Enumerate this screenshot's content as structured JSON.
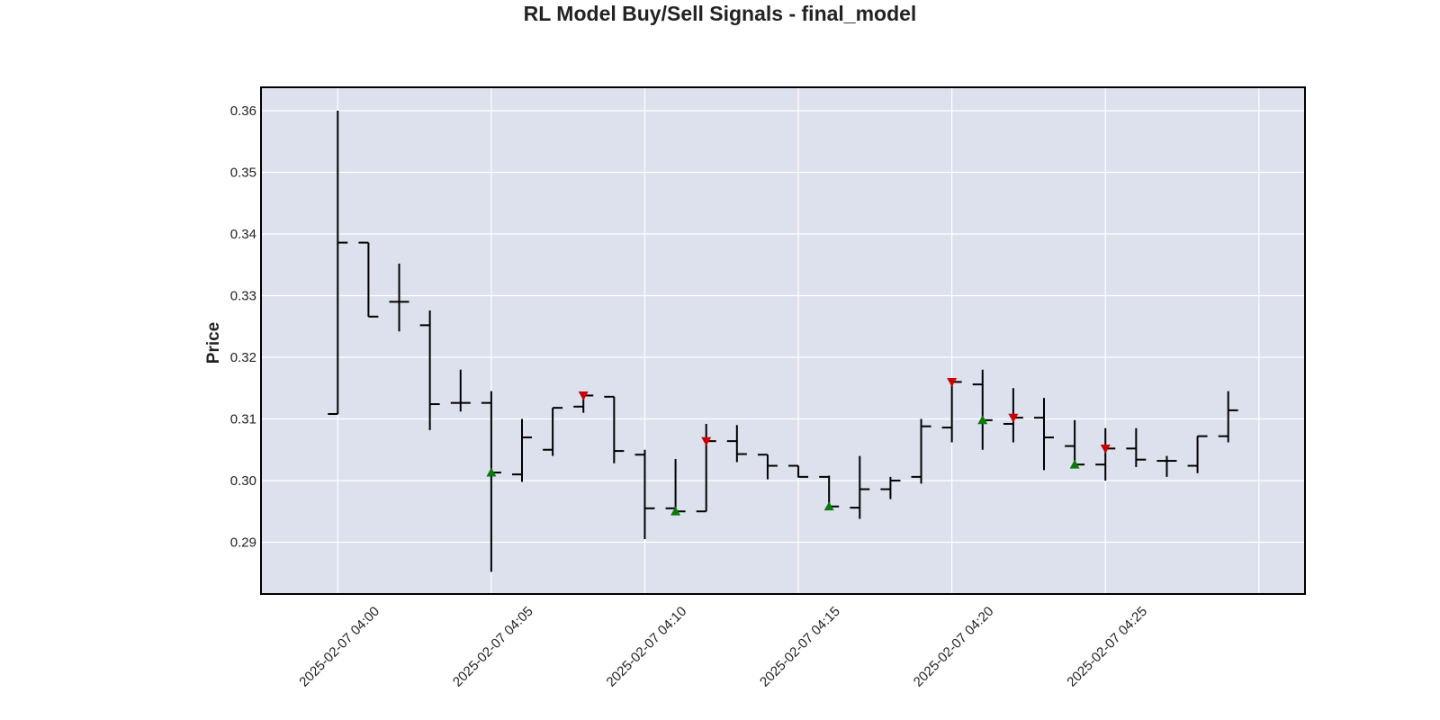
{
  "chart_data": {
    "type": "ohlc",
    "title": "RL Model Buy/Sell Signals - final_model",
    "xlabel": "",
    "ylabel": "Price",
    "x_unit": "minute",
    "x_start": "2025-02-07 04:00",
    "x_ticks": [
      "2025-02-07 04:00",
      "2025-02-07 04:05",
      "2025-02-07 04:10",
      "2025-02-07 04:15",
      "2025-02-07 04:20",
      "2025-02-07 04:25"
    ],
    "xlim": [
      "2025-02-07 03:57:30",
      "2025-02-07 04:31:30"
    ],
    "y_ticks": [
      "0.29",
      "0.30",
      "0.31",
      "0.32",
      "0.33",
      "0.34",
      "0.35",
      "0.36"
    ],
    "ylim": [
      0.2816,
      0.3638
    ],
    "grid": true,
    "colors": {
      "background": "#dde1ee",
      "grid": "#ffffff",
      "bars": "#000000",
      "buy": "#0a7a0a",
      "sell": "#cc0000",
      "frame": "#000000"
    },
    "candles": [
      {
        "t": "2025-02-07 04:00",
        "open": 0.3108,
        "high": 0.36,
        "low": 0.3108,
        "close": 0.3386
      },
      {
        "t": "2025-02-07 04:01",
        "open": 0.3386,
        "high": 0.3386,
        "low": 0.3266,
        "close": 0.3266
      },
      {
        "t": "2025-02-07 04:02",
        "open": 0.329,
        "high": 0.3352,
        "low": 0.3242,
        "close": 0.329
      },
      {
        "t": "2025-02-07 04:03",
        "open": 0.3252,
        "high": 0.3276,
        "low": 0.3082,
        "close": 0.3124
      },
      {
        "t": "2025-02-07 04:04",
        "open": 0.3126,
        "high": 0.318,
        "low": 0.3112,
        "close": 0.3126
      },
      {
        "t": "2025-02-07 04:05",
        "open": 0.3126,
        "high": 0.3145,
        "low": 0.2852,
        "close": 0.3013
      },
      {
        "t": "2025-02-07 04:06",
        "open": 0.301,
        "high": 0.31,
        "low": 0.2998,
        "close": 0.307
      },
      {
        "t": "2025-02-07 04:07",
        "open": 0.305,
        "high": 0.3118,
        "low": 0.304,
        "close": 0.3118
      },
      {
        "t": "2025-02-07 04:08",
        "open": 0.312,
        "high": 0.314,
        "low": 0.311,
        "close": 0.3138
      },
      {
        "t": "2025-02-07 04:09",
        "open": 0.3136,
        "high": 0.3136,
        "low": 0.3028,
        "close": 0.3048
      },
      {
        "t": "2025-02-07 04:10",
        "open": 0.3042,
        "high": 0.305,
        "low": 0.2905,
        "close": 0.2955
      },
      {
        "t": "2025-02-07 04:11",
        "open": 0.2955,
        "high": 0.3035,
        "low": 0.2945,
        "close": 0.295
      },
      {
        "t": "2025-02-07 04:12",
        "open": 0.295,
        "high": 0.3092,
        "low": 0.295,
        "close": 0.3064
      },
      {
        "t": "2025-02-07 04:13",
        "open": 0.3064,
        "high": 0.309,
        "low": 0.303,
        "close": 0.3043
      },
      {
        "t": "2025-02-07 04:14",
        "open": 0.3042,
        "high": 0.3042,
        "low": 0.3002,
        "close": 0.3024
      },
      {
        "t": "2025-02-07 04:15",
        "open": 0.3024,
        "high": 0.3024,
        "low": 0.3005,
        "close": 0.3006
      },
      {
        "t": "2025-02-07 04:16",
        "open": 0.3006,
        "high": 0.3008,
        "low": 0.2958,
        "close": 0.2958
      },
      {
        "t": "2025-02-07 04:17",
        "open": 0.2956,
        "high": 0.304,
        "low": 0.2938,
        "close": 0.2986
      },
      {
        "t": "2025-02-07 04:18",
        "open": 0.2986,
        "high": 0.3006,
        "low": 0.297,
        "close": 0.3
      },
      {
        "t": "2025-02-07 04:19",
        "open": 0.3006,
        "high": 0.31,
        "low": 0.2995,
        "close": 0.3088
      },
      {
        "t": "2025-02-07 04:20",
        "open": 0.3086,
        "high": 0.3162,
        "low": 0.3062,
        "close": 0.316
      },
      {
        "t": "2025-02-07 04:21",
        "open": 0.3156,
        "high": 0.318,
        "low": 0.305,
        "close": 0.3098
      },
      {
        "t": "2025-02-07 04:22",
        "open": 0.3092,
        "high": 0.315,
        "low": 0.3062,
        "close": 0.3102
      },
      {
        "t": "2025-02-07 04:23",
        "open": 0.3102,
        "high": 0.3134,
        "low": 0.3017,
        "close": 0.307
      },
      {
        "t": "2025-02-07 04:24",
        "open": 0.3056,
        "high": 0.3098,
        "low": 0.302,
        "close": 0.3026
      },
      {
        "t": "2025-02-07 04:25",
        "open": 0.3026,
        "high": 0.3085,
        "low": 0.3,
        "close": 0.3052
      },
      {
        "t": "2025-02-07 04:26",
        "open": 0.3052,
        "high": 0.3085,
        "low": 0.3022,
        "close": 0.3034
      },
      {
        "t": "2025-02-07 04:27",
        "open": 0.3032,
        "high": 0.304,
        "low": 0.3006,
        "close": 0.3032
      },
      {
        "t": "2025-02-07 04:28",
        "open": 0.3024,
        "high": 0.3072,
        "low": 0.3012,
        "close": 0.3072
      },
      {
        "t": "2025-02-07 04:29",
        "open": 0.3072,
        "high": 0.3145,
        "low": 0.3062,
        "close": 0.3114
      }
    ],
    "buy_signals": [
      {
        "t": "2025-02-07 04:05",
        "price": 0.3013
      },
      {
        "t": "2025-02-07 04:11",
        "price": 0.295
      },
      {
        "t": "2025-02-07 04:16",
        "price": 0.2958
      },
      {
        "t": "2025-02-07 04:21",
        "price": 0.3098
      },
      {
        "t": "2025-02-07 04:24",
        "price": 0.3026
      }
    ],
    "sell_signals": [
      {
        "t": "2025-02-07 04:08",
        "price": 0.3138
      },
      {
        "t": "2025-02-07 04:12",
        "price": 0.3064
      },
      {
        "t": "2025-02-07 04:20",
        "price": 0.316
      },
      {
        "t": "2025-02-07 04:22",
        "price": 0.3102
      },
      {
        "t": "2025-02-07 04:25",
        "price": 0.3052
      }
    ]
  }
}
